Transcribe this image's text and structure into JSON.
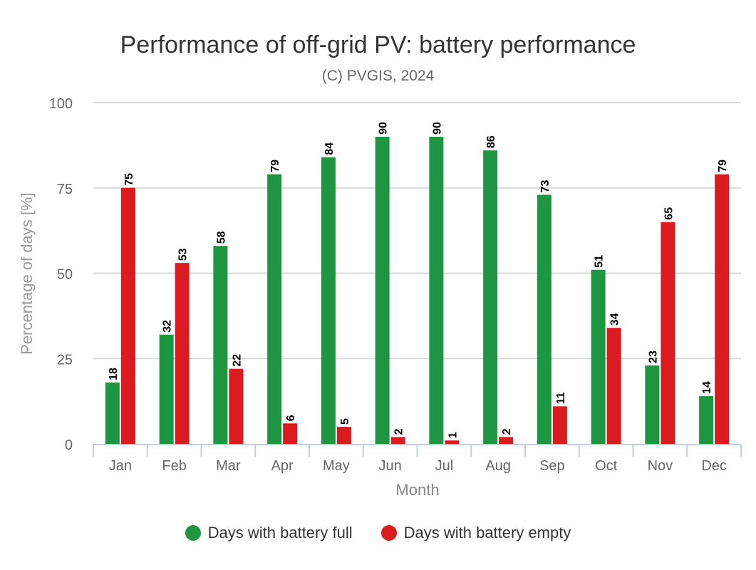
{
  "chart_data": {
    "type": "bar",
    "title": "Performance of off-grid PV: battery performance",
    "subtitle": "(C) PVGIS, 2024",
    "xlabel": "Month",
    "ylabel": "Percentage of days [%]",
    "ylim": [
      0,
      100
    ],
    "yticks": [
      0,
      25,
      50,
      75,
      100
    ],
    "grid": true,
    "legend_position": "bottom-center",
    "categories": [
      "Jan",
      "Feb",
      "Mar",
      "Apr",
      "May",
      "Jun",
      "Jul",
      "Aug",
      "Sep",
      "Oct",
      "Nov",
      "Dec"
    ],
    "series": [
      {
        "name": "Days with battery full",
        "color": "#1e9641",
        "values": [
          18,
          32,
          58,
          79,
          84,
          90,
          90,
          86,
          73,
          51,
          23,
          14
        ]
      },
      {
        "name": "Days with battery empty",
        "color": "#da1b20",
        "values": [
          75,
          53,
          22,
          6,
          5,
          2,
          1,
          2,
          11,
          34,
          65,
          79
        ]
      }
    ]
  }
}
